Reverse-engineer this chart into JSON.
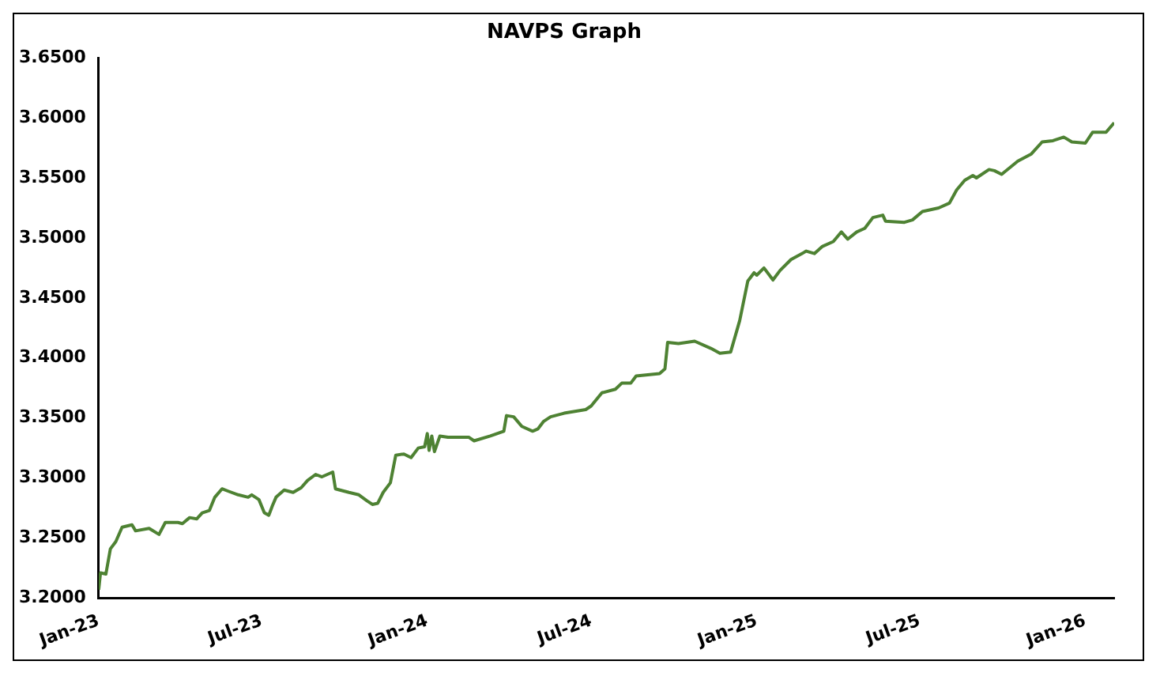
{
  "chart_data": {
    "type": "line",
    "title": "NAVPS Graph",
    "x": [
      "2023-01-01",
      "2023-01-03",
      "2023-01-09",
      "2023-01-14",
      "2023-01-20",
      "2023-01-27",
      "2023-02-07",
      "2023-02-11",
      "2023-02-26",
      "2023-03-09",
      "2023-03-16",
      "2023-03-30",
      "2023-04-04",
      "2023-04-12",
      "2023-04-20",
      "2023-04-26",
      "2023-05-04",
      "2023-05-10",
      "2023-05-18",
      "2023-05-25",
      "2023-06-05",
      "2023-06-16",
      "2023-06-20",
      "2023-06-28",
      "2023-07-04",
      "2023-07-09",
      "2023-07-13",
      "2023-07-17",
      "2023-07-26",
      "2023-08-05",
      "2023-08-14",
      "2023-08-21",
      "2023-08-30",
      "2023-09-06",
      "2023-09-18",
      "2023-09-21",
      "2023-10-06",
      "2023-10-17",
      "2023-10-26",
      "2023-11-01",
      "2023-11-07",
      "2023-11-13",
      "2023-11-21",
      "2023-11-27",
      "2023-12-06",
      "2023-12-14",
      "2023-12-22",
      "2023-12-29",
      "2024-01-01",
      "2024-01-03",
      "2024-01-06",
      "2024-01-09",
      "2024-01-15",
      "2024-01-24",
      "2024-02-16",
      "2024-02-22",
      "2024-03-11",
      "2024-03-26",
      "2024-03-29",
      "2024-04-06",
      "2024-04-15",
      "2024-04-27",
      "2024-05-03",
      "2024-05-09",
      "2024-05-17",
      "2024-06-01",
      "2024-06-25",
      "2024-07-01",
      "2024-07-13",
      "2024-07-28",
      "2024-08-04",
      "2024-08-14",
      "2024-08-20",
      "2024-09-15",
      "2024-09-21",
      "2024-09-24",
      "2024-10-06",
      "2024-10-24",
      "2024-11-11",
      "2024-11-21",
      "2024-12-03",
      "2024-12-13",
      "2024-12-22",
      "2024-12-29",
      "2025-01-01",
      "2025-01-09",
      "2025-01-19",
      "2025-01-27",
      "2025-02-08",
      "2025-02-25",
      "2025-03-06",
      "2025-03-15",
      "2025-03-27",
      "2025-04-05",
      "2025-04-12",
      "2025-04-22",
      "2025-05-01",
      "2025-05-10",
      "2025-05-21",
      "2025-05-24",
      "2025-06-14",
      "2025-06-23",
      "2025-07-04",
      "2025-07-22",
      "2025-08-03",
      "2025-08-11",
      "2025-08-20",
      "2025-08-29",
      "2025-09-02",
      "2025-09-16",
      "2025-09-22",
      "2025-09-30",
      "2025-10-18",
      "2025-11-02",
      "2025-11-14",
      "2025-11-26",
      "2025-12-08",
      "2025-12-17",
      "2026-01-01",
      "2026-01-09",
      "2026-01-24",
      "2026-02-02"
    ],
    "series": [
      {
        "color": "#4e8233",
        "values": [
          3.207,
          3.221,
          3.22,
          3.241,
          3.247,
          3.259,
          3.261,
          3.256,
          3.258,
          3.253,
          3.263,
          3.263,
          3.262,
          3.267,
          3.266,
          3.271,
          3.273,
          3.284,
          3.291,
          3.289,
          3.286,
          3.284,
          3.286,
          3.282,
          3.271,
          3.269,
          3.277,
          3.284,
          3.29,
          3.288,
          3.292,
          3.298,
          3.303,
          3.301,
          3.305,
          3.291,
          3.288,
          3.286,
          3.281,
          3.278,
          3.279,
          3.288,
          3.296,
          3.319,
          3.32,
          3.317,
          3.325,
          3.326,
          3.337,
          3.323,
          3.335,
          3.322,
          3.335,
          3.334,
          3.334,
          3.331,
          3.335,
          3.339,
          3.352,
          3.351,
          3.343,
          3.339,
          3.341,
          3.347,
          3.351,
          3.354,
          3.357,
          3.36,
          3.371,
          3.374,
          3.379,
          3.379,
          3.385,
          3.387,
          3.391,
          3.413,
          3.412,
          3.414,
          3.408,
          3.404,
          3.405,
          3.431,
          3.464,
          3.471,
          3.469,
          3.475,
          3.465,
          3.473,
          3.482,
          3.489,
          3.487,
          3.493,
          3.497,
          3.505,
          3.499,
          3.505,
          3.508,
          3.517,
          3.519,
          3.514,
          3.513,
          3.515,
          3.522,
          3.525,
          3.529,
          3.54,
          3.548,
          3.552,
          3.55,
          3.557,
          3.556,
          3.553,
          3.564,
          3.57,
          3.58,
          3.581,
          3.584,
          3.58,
          3.579,
          3.588,
          3.588,
          3.596
        ]
      }
    ],
    "xlim": [
      "2023-01-01",
      "2026-02-02"
    ],
    "xticks": [
      {
        "value": "2023-01-01",
        "label": "Jan-23"
      },
      {
        "value": "2023-07-01",
        "label": "Jul-23"
      },
      {
        "value": "2024-01-01",
        "label": "Jan-24"
      },
      {
        "value": "2024-07-01",
        "label": "Jul-24"
      },
      {
        "value": "2025-01-01",
        "label": "Jan-25"
      },
      {
        "value": "2025-07-01",
        "label": "Jul-25"
      },
      {
        "value": "2026-01-01",
        "label": "Jan-26"
      }
    ],
    "ylim": [
      3.2,
      3.65
    ],
    "yticks": [
      {
        "value": 3.2,
        "label": "3.2000"
      },
      {
        "value": 3.25,
        "label": "3.2500"
      },
      {
        "value": 3.3,
        "label": "3.3000"
      },
      {
        "value": 3.35,
        "label": "3.3500"
      },
      {
        "value": 3.4,
        "label": "3.4000"
      },
      {
        "value": 3.45,
        "label": "3.4500"
      },
      {
        "value": 3.5,
        "label": "3.5000"
      },
      {
        "value": 3.55,
        "label": "3.5500"
      },
      {
        "value": 3.6,
        "label": "3.6000"
      },
      {
        "value": 3.65,
        "label": "3.6500"
      }
    ],
    "grid": false,
    "legend": false,
    "marker": "none",
    "line_style": "solid"
  }
}
